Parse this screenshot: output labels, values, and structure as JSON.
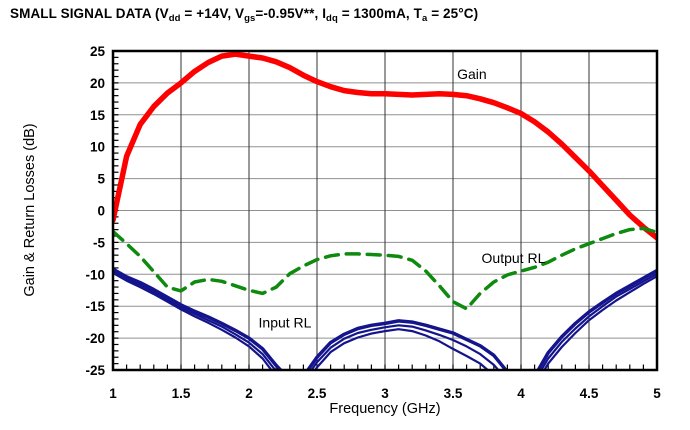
{
  "header": {
    "title_segments": [
      {
        "text": "SMALL SIGNAL DATA (V"
      },
      {
        "text": "dd",
        "sub": true
      },
      {
        "text": " = +14V, V"
      },
      {
        "text": "gs",
        "sub": true
      },
      {
        "text": "=-0.95V**, I"
      },
      {
        "text": "dq",
        "sub": true
      },
      {
        "text": " = 1300mA, T"
      },
      {
        "text": "a",
        "sub": true
      },
      {
        "text": " = 25°C)"
      }
    ]
  },
  "chart_data": {
    "type": "line",
    "title": "SMALL SIGNAL DATA (Vdd = +14V, Vgs=-0.95V**, Idq = 1300mA, Ta = 25°C)",
    "xlabel": "Frequency (GHz)",
    "ylabel": "Gain & Return Losses (dB)",
    "xlim": [
      1,
      5
    ],
    "ylim": [
      -25,
      25
    ],
    "x_tick_values": [
      1,
      1.5,
      2,
      2.5,
      3,
      3.5,
      4,
      4.5,
      5
    ],
    "x_tick_labels": [
      "1",
      "1.5",
      "2",
      "2.5",
      "3",
      "3.5",
      "4",
      "4.5",
      "5"
    ],
    "y_tick_values": [
      25,
      20,
      15,
      10,
      5,
      0,
      -5,
      -10,
      -15,
      -20,
      -25
    ],
    "y_tick_labels": [
      "25",
      "20",
      "15",
      "10",
      "5",
      "0",
      "-5",
      "-10",
      "-15",
      "-20",
      "-25"
    ],
    "x_minor_step": 0.1,
    "y_minor_step": 1,
    "grid": true,
    "grid_color_horizontal": "#909090",
    "grid_color_vertical": "#333333",
    "frame_color": "#000000",
    "x": [
      1.0,
      1.1,
      1.2,
      1.3,
      1.4,
      1.5,
      1.6,
      1.7,
      1.8,
      1.9,
      2.0,
      2.1,
      2.2,
      2.3,
      2.4,
      2.5,
      2.6,
      2.7,
      2.8,
      2.9,
      3.0,
      3.1,
      3.2,
      3.3,
      3.4,
      3.5,
      3.6,
      3.7,
      3.8,
      3.9,
      4.0,
      4.1,
      4.2,
      4.3,
      4.4,
      4.5,
      4.6,
      4.7,
      4.8,
      4.9,
      5.0
    ],
    "series": [
      {
        "name": "Gain",
        "color": "#fe0000",
        "style": "solid",
        "width": 5.5,
        "traces": [
          [
            -1.5,
            8.5,
            13.5,
            16.3,
            18.4,
            20.0,
            21.8,
            23.2,
            24.2,
            24.5,
            24.2,
            23.9,
            23.3,
            22.4,
            21.2,
            20.2,
            19.4,
            18.8,
            18.5,
            18.3,
            18.3,
            18.2,
            18.1,
            18.2,
            18.3,
            18.2,
            18.0,
            17.5,
            16.9,
            16.1,
            15.2,
            13.9,
            12.3,
            10.4,
            8.3,
            6.2,
            3.9,
            1.6,
            -0.7,
            -2.6,
            -4.3
          ]
        ]
      },
      {
        "name": "Output RL",
        "color": "#0e8a0e",
        "style": "dashed",
        "width": 3.5,
        "dash": [
          13,
          8
        ],
        "traces": [
          [
            -3.3,
            -5.2,
            -7.2,
            -9.6,
            -12.0,
            -12.6,
            -11.2,
            -10.8,
            -11.1,
            -11.8,
            -12.5,
            -13.0,
            -12.0,
            -9.9,
            -8.7,
            -7.7,
            -7.1,
            -6.8,
            -6.8,
            -6.9,
            -7.0,
            -7.2,
            -7.8,
            -9.5,
            -11.8,
            -14.3,
            -15.4,
            -13.0,
            -11.2,
            -10.1,
            -9.5,
            -8.9,
            -8.1,
            -7.0,
            -6.0,
            -5.2,
            -4.4,
            -3.6,
            -3.0,
            -2.8,
            -3.4
          ]
        ]
      },
      {
        "name": "Input RL",
        "color": "#14148c",
        "style": "solid",
        "width": 3.5,
        "trace_widths": [
          3.5,
          2.2,
          2.2
        ],
        "traces": [
          [
            -9.2,
            -10.4,
            -11.3,
            -12.4,
            -13.6,
            -14.8,
            -15.8,
            -16.7,
            -17.7,
            -18.8,
            -20.0,
            -21.7,
            -24.3,
            -26.5,
            -26.0,
            -23.0,
            -20.7,
            -19.4,
            -18.5,
            -18.0,
            -17.7,
            -17.3,
            -17.5,
            -18.0,
            -18.6,
            -19.2,
            -20.2,
            -21.2,
            -22.7,
            -25.3,
            -27.0,
            -26.0,
            -22.3,
            -19.8,
            -17.7,
            -15.9,
            -14.4,
            -13.0,
            -11.8,
            -10.6,
            -9.4
          ],
          [
            -9.5,
            -10.7,
            -11.7,
            -12.8,
            -14.0,
            -15.2,
            -16.2,
            -17.2,
            -18.2,
            -19.4,
            -20.7,
            -22.5,
            -25.2,
            -27.3,
            -26.8,
            -23.8,
            -21.5,
            -20.1,
            -19.2,
            -18.7,
            -18.3,
            -18.0,
            -18.2,
            -18.8,
            -19.5,
            -20.3,
            -21.3,
            -22.5,
            -24.2,
            -26.6,
            -28.0,
            -26.8,
            -23.2,
            -20.6,
            -18.5,
            -16.6,
            -15.0,
            -13.5,
            -12.3,
            -11.1,
            -9.9
          ],
          [
            -9.8,
            -11.0,
            -12.0,
            -13.1,
            -14.3,
            -15.5,
            -16.6,
            -17.6,
            -18.7,
            -19.9,
            -21.3,
            -23.2,
            -26.0,
            -28.0,
            -27.5,
            -24.6,
            -22.2,
            -20.8,
            -19.9,
            -19.3,
            -18.9,
            -18.6,
            -18.9,
            -19.6,
            -20.5,
            -21.7,
            -22.8,
            -24.0,
            -25.8,
            -27.8,
            -29.0,
            -27.6,
            -24.0,
            -21.4,
            -19.2,
            -17.2,
            -15.6,
            -14.1,
            -12.8,
            -11.5,
            -10.3
          ]
        ]
      }
    ],
    "annotations": [
      {
        "text": "Gain",
        "x": 3.53,
        "y": 20.6
      },
      {
        "text": "Output RL",
        "x": 3.71,
        "y": -8.2
      },
      {
        "text": "Input RL",
        "x": 2.07,
        "y": -18.3
      }
    ],
    "legend_position": "none"
  }
}
